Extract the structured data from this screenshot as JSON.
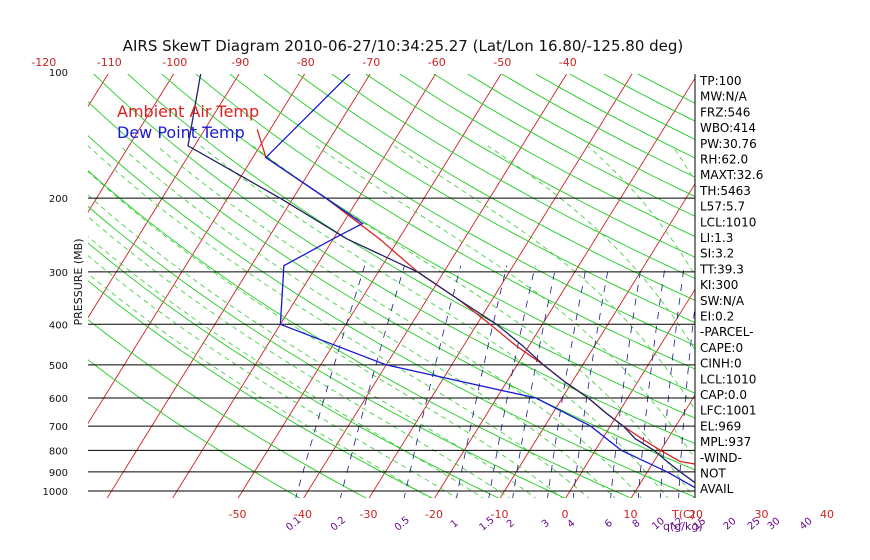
{
  "chart_data": {
    "type": "line",
    "title": "AIRS SkewT Diagram 2010-06-27/10:34:25.27 (Lat/Lon 16.80/-125.80 deg)",
    "ylabel": "PRESSURE (MB)",
    "bottom_unit_label": "T(C)",
    "mixing_ratio_unit_label": "q(g/kg)",
    "y_scale": "log",
    "ylim": [
      1050,
      100
    ],
    "pressure_ticks": [
      100,
      200,
      300,
      400,
      500,
      600,
      700,
      800,
      900,
      1000
    ],
    "pressure_tick_labels": [
      "100",
      "200",
      "300",
      "400",
      "500",
      "600",
      "700",
      "800",
      "900",
      "1000"
    ],
    "top_temp_ticks": [
      -120,
      -110,
      -100,
      -90,
      -80,
      -70,
      -60,
      -50,
      -40
    ],
    "top_temp_tick_labels": [
      "-120",
      "-110",
      "-100",
      "-90",
      "-80",
      "-70",
      "-60",
      "-50",
      "-40"
    ],
    "bottom_temp_ticks": [
      -50,
      -40,
      -30,
      -20,
      -10,
      0,
      10,
      20,
      30,
      40
    ],
    "bottom_temp_tick_labels": [
      "-50",
      "-40",
      "-30",
      "-20",
      "-10",
      "0",
      "10",
      "20",
      "30",
      "40"
    ],
    "mixing_ratio_ticks": [
      0.1,
      0.2,
      0.5,
      1,
      1.5,
      2,
      3,
      4,
      6,
      8,
      10,
      12,
      15,
      20,
      25,
      30,
      40
    ],
    "mixing_ratio_tick_labels": [
      "0.1",
      "0.2",
      "0.5",
      "1",
      "1.5",
      "2",
      "3",
      "4",
      "6",
      "8",
      "10",
      "12",
      "15",
      "20",
      "25",
      "30",
      "40"
    ],
    "legend": [
      {
        "name": "Ambient Air Temp",
        "color": "#dd2222"
      },
      {
        "name": "Dew Point Temp",
        "color": "#1a1ad4"
      }
    ],
    "legend_position": "top-left",
    "grid": true,
    "series": [
      {
        "name": "Ambient Air Temp",
        "color": "#dd2222",
        "points": [
          [
            137,
            -82
          ],
          [
            160,
            -78
          ],
          [
            200,
            -65
          ],
          [
            250,
            -53
          ],
          [
            300,
            -44
          ],
          [
            350,
            -35
          ],
          [
            400,
            -28
          ],
          [
            450,
            -22
          ],
          [
            500,
            -16
          ],
          [
            550,
            -11
          ],
          [
            600,
            -6
          ],
          [
            650,
            -2
          ],
          [
            700,
            2
          ],
          [
            750,
            6
          ],
          [
            800,
            10
          ],
          [
            850,
            14
          ],
          [
            880,
            20
          ],
          [
            930,
            20
          ],
          [
            1000,
            21
          ]
        ]
      },
      {
        "name": "Dew Point Temp",
        "color": "#1a1ad4",
        "points": [
          [
            100,
            -73
          ],
          [
            160,
            -78
          ],
          [
            200,
            -65
          ],
          [
            230,
            -57
          ],
          [
            250,
            -60
          ],
          [
            290,
            -65
          ],
          [
            400,
            -60
          ],
          [
            500,
            -40
          ],
          [
            600,
            -14
          ],
          [
            700,
            -3
          ],
          [
            800,
            4
          ],
          [
            900,
            13
          ],
          [
            1000,
            20
          ]
        ]
      },
      {
        "name": "parcel",
        "color": "#222266",
        "points": [
          [
            100,
            -96
          ],
          [
            150,
            -91
          ],
          [
            200,
            -72
          ],
          [
            250,
            -58
          ],
          [
            300,
            -44
          ],
          [
            350,
            -35
          ],
          [
            400,
            -27
          ],
          [
            450,
            -21
          ],
          [
            500,
            -16
          ],
          [
            550,
            -11
          ],
          [
            600,
            -6
          ],
          [
            650,
            -2
          ],
          [
            700,
            2
          ],
          [
            750,
            5
          ],
          [
            800,
            9
          ],
          [
            850,
            12
          ],
          [
            900,
            15
          ],
          [
            950,
            18
          ],
          [
            1000,
            21
          ]
        ]
      }
    ]
  },
  "side_panel": [
    "TP:100",
    "MW:N/A",
    "FRZ:546",
    "WBO:414",
    "PW:30.76",
    "RH:62.0",
    "MAXT:32.6",
    "TH:5463",
    "L57:5.7",
    "LCL:1010",
    "LI:1.3",
    "SI:3.2",
    "TT:39.3",
    "KI:300",
    "SW:N/A",
    "EI:0.2",
    "-PARCEL-",
    "CAPE:0",
    "CINH:0",
    "LCL:1010",
    "CAP:0.0",
    "LFC:1001",
    "EL:969",
    "MPL:937",
    "-WIND-",
    "NOT",
    "AVAIL"
  ],
  "colors": {
    "isotherm": "#cc2222",
    "dry_adiabat": "#22cc22",
    "moist_adiabat": "#33cc33",
    "mixing_ratio": "#1a1a8a",
    "isobar": "#000000",
    "label": "#cc2222",
    "mixing_label": "#6a0a8a"
  }
}
